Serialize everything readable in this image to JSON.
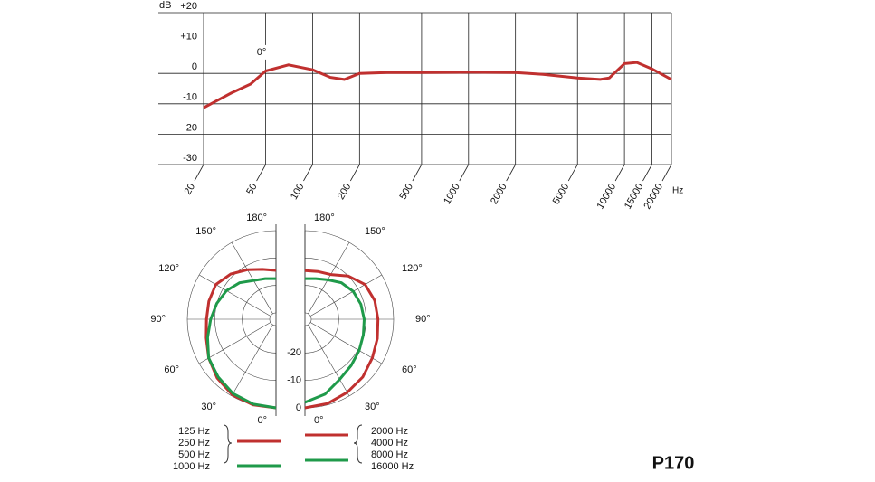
{
  "label": "P170",
  "chart_data": [
    {
      "type": "line",
      "y_label": "dB",
      "x_label": "Hz",
      "annotation": "0°",
      "log_x": true,
      "grid": true,
      "xlim": [
        20,
        20000
      ],
      "xticks": [
        20,
        50,
        100,
        200,
        500,
        1000,
        2000,
        5000,
        10000,
        15000,
        20000
      ],
      "ylim": [
        -30,
        20
      ],
      "yticks": [
        -30,
        -20,
        -10,
        0,
        {
          "value": 10,
          "label": "+10"
        },
        {
          "value": 20,
          "label": "+20"
        }
      ],
      "x": [
        20,
        30,
        40,
        50,
        70,
        100,
        130,
        160,
        200,
        300,
        500,
        1000,
        2000,
        3000,
        5000,
        7000,
        8000,
        10000,
        12000,
        15000,
        20000
      ],
      "series": [
        {
          "color": "#c0302f",
          "values": [
            -11.3,
            -6.5,
            -3.5,
            0.8,
            2.8,
            1.2,
            -1.3,
            -2,
            0,
            0.3,
            0.3,
            0.4,
            0.3,
            -0.3,
            -1.5,
            -2,
            -1.5,
            3.2,
            3.6,
            1.5,
            -2
          ]
        }
      ]
    },
    {
      "type": "polar",
      "rlim": [
        -30,
        0
      ],
      "rticks": [
        0,
        -10,
        -20
      ],
      "theta": [
        0,
        15,
        30,
        45,
        60,
        75,
        90,
        105,
        120,
        135,
        150,
        165,
        180
      ],
      "thetaticks": [
        {
          "value": 0,
          "label": "0°"
        },
        {
          "value": 30,
          "label": "30°"
        },
        {
          "value": 60,
          "label": "60°"
        },
        {
          "value": 90,
          "label": "90°"
        },
        {
          "value": 120,
          "label": "120°"
        },
        {
          "value": 150,
          "label": "150°"
        },
        {
          "value": 180,
          "label": "180°"
        }
      ],
      "series": [
        {
          "names": [
            "125 Hz",
            "250 Hz"
          ],
          "color": "#c0302f",
          "side": "left",
          "values": [
            0,
            0,
            -0.5,
            -2,
            -4,
            -6,
            -7,
            -7,
            -7,
            -9,
            -11.5,
            -13.5,
            -14.5
          ]
        },
        {
          "names": [
            "500 Hz",
            "1000 Hz"
          ],
          "color": "#1f9a4a",
          "side": "left",
          "values": [
            0,
            -0.3,
            -1,
            -2.5,
            -4,
            -6.5,
            -8.5,
            -10,
            -11.5,
            -13.5,
            -16,
            -17,
            -17.5
          ]
        },
        {
          "names": [
            "2000 Hz",
            "4000 Hz"
          ],
          "color": "#c0302f",
          "side": "right",
          "values": [
            0,
            -0.5,
            -1.5,
            -2.5,
            -4,
            -5,
            -5.7,
            -6,
            -7,
            -10,
            -13.5,
            -14.3,
            -14.6
          ]
        },
        {
          "names": [
            "8000 Hz",
            "16000 Hz"
          ],
          "color": "#1f9a4a",
          "side": "right",
          "values": [
            -2,
            -4,
            -7,
            -8.5,
            -9.5,
            -10.3,
            -10.7,
            -11.2,
            -12,
            -13.5,
            -15.7,
            -17,
            -17.5
          ]
        }
      ]
    }
  ]
}
